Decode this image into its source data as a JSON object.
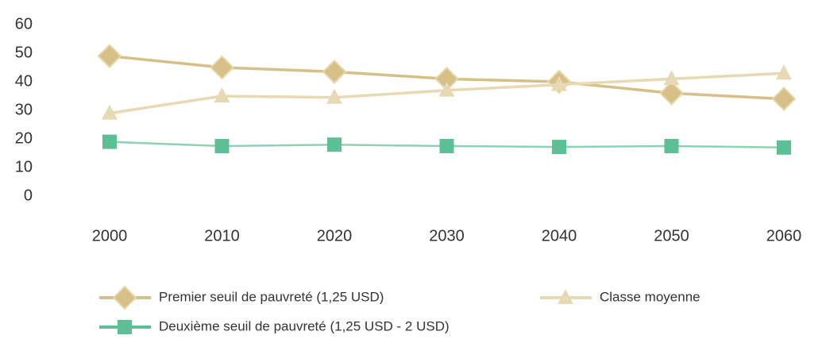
{
  "chart_data": {
    "type": "line",
    "categories": [
      "2000",
      "2010",
      "2020",
      "2030",
      "2040",
      "2050",
      "2060"
    ],
    "series": [
      {
        "name": "Premier seuil de pauvreté (1,25 USD)",
        "color": "#d6c088",
        "marker": "diamond",
        "values": [
          49,
          45,
          43.5,
          41,
          40,
          36,
          34
        ]
      },
      {
        "name": "Classe moyenne",
        "color": "#e6d9b4",
        "marker": "triangle",
        "values": [
          29,
          35,
          34.5,
          37,
          39,
          41,
          43
        ]
      },
      {
        "name": "Deuxième seuil de pauvreté (1,25 USD - 2 USD)",
        "color": "#5dbf94",
        "marker": "square",
        "values": [
          19,
          17.5,
          18,
          17.5,
          17.2,
          17.5,
          17
        ]
      }
    ],
    "ylim": [
      0,
      60
    ],
    "yticks": [
      0,
      10,
      20,
      30,
      40,
      50,
      60
    ],
    "grid": false,
    "legend": "bottom"
  }
}
